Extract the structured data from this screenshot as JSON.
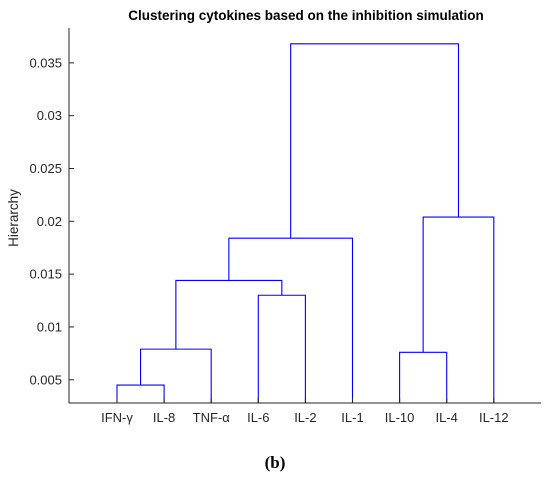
{
  "chart_data": {
    "type": "dendrogram",
    "title": "Clustering cytokines based on the inhibition simulation",
    "ylabel": "Hierarchy",
    "xlabel": "",
    "leaves": [
      "IFN-γ",
      "IL-8",
      "TNF-α",
      "IL-6",
      "IL-2",
      "IL-1",
      "IL-10",
      "IL-4",
      "IL-12"
    ],
    "ylim": [
      0.0028,
      0.0383
    ],
    "yticks": [
      0.005,
      0.01,
      0.015,
      0.02,
      0.025,
      0.03,
      0.035
    ],
    "ytick_labels": [
      "0.005",
      "0.01",
      "0.015",
      "0.02",
      "0.025",
      "0.03",
      "0.035"
    ],
    "links": [
      {
        "left": "IFN-γ",
        "right": "IL-8",
        "height": 0.0045
      },
      {
        "left": "IFN-γ,IL-8",
        "right": "TNF-α",
        "height": 0.0079
      },
      {
        "left": "IL-6",
        "right": "IL-2",
        "height": 0.013
      },
      {
        "left": "IFN-γ,IL-8,TNF-α",
        "right": "IL-6,IL-2",
        "height": 0.0144
      },
      {
        "left": "IFN-γ,IL-8,TNF-α,IL-6,IL-2",
        "right": "IL-1",
        "height": 0.0184
      },
      {
        "left": "IL-10",
        "right": "IL-4",
        "height": 0.0076
      },
      {
        "left": "IL-10,IL-4",
        "right": "IL-12",
        "height": 0.0204
      },
      {
        "left": "IFN-γ,IL-8,TNF-α,IL-6,IL-2,IL-1",
        "right": "IL-10,IL-4,IL-12",
        "height": 0.0368
      }
    ],
    "line_color": "#0000ff",
    "grid": false
  },
  "panel_label": "(b)"
}
